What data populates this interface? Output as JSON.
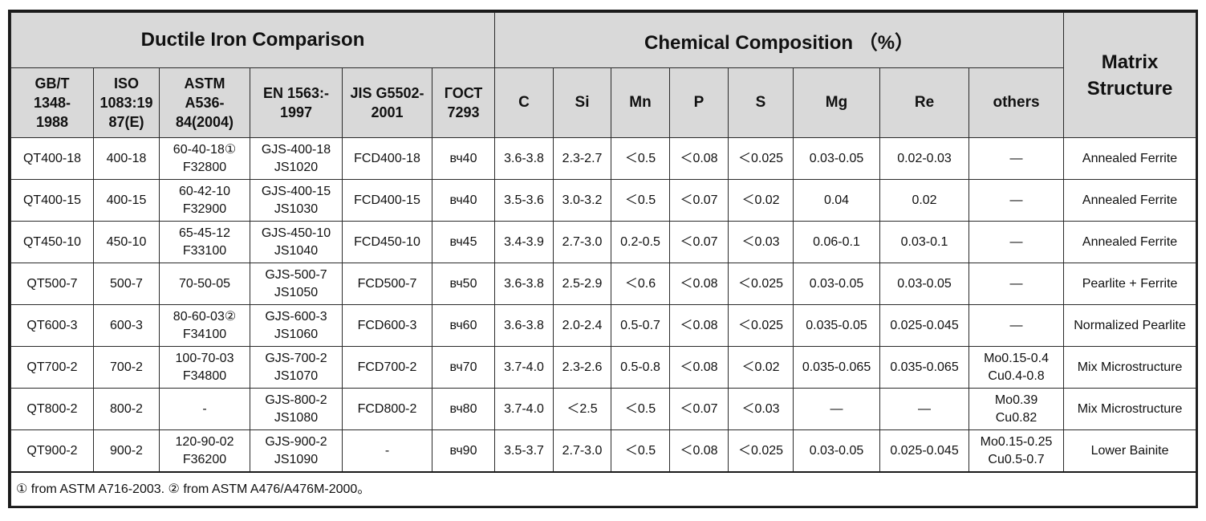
{
  "header": {
    "comparison_title": "Ductile Iron Comparison",
    "chemical_title": "Chemical Composition （%）",
    "matrix_title": "Matrix\nStructure"
  },
  "columns": {
    "gbt": "GB/T\n1348-\n1988",
    "iso": "ISO\n1083:19\n87(E)",
    "astm": "ASTM\nA536-\n84(2004)",
    "en": "EN 1563:-\n1997",
    "jis": "JIS G5502-\n2001",
    "gost": "ГОСТ\n7293",
    "c": "C",
    "si": "Si",
    "mn": "Mn",
    "p": "P",
    "s": "S",
    "mg": "Mg",
    "re": "Re",
    "others": "others"
  },
  "rows": [
    {
      "gbt": "QT400-18",
      "iso": "400-18",
      "astm": "60-40-18①\nF32800",
      "en": "GJS-400-18\nJS1020",
      "jis": "FCD400-18",
      "gost": "вч40",
      "c": "3.6-3.8",
      "si": "2.3-2.7",
      "mn": "＜0.5",
      "p": "＜0.08",
      "s": "＜0.025",
      "mg": "0.03-0.05",
      "re": "0.02-0.03",
      "others": "—",
      "matrix": "Annealed Ferrite"
    },
    {
      "gbt": "QT400-15",
      "iso": "400-15",
      "astm": "60-42-10\nF32900",
      "en": "GJS-400-15\nJS1030",
      "jis": "FCD400-15",
      "gost": "вч40",
      "c": "3.5-3.6",
      "si": "3.0-3.2",
      "mn": "＜0.5",
      "p": "＜0.07",
      "s": "＜0.02",
      "mg": "0.04",
      "re": "0.02",
      "others": "—",
      "matrix": "Annealed Ferrite"
    },
    {
      "gbt": "QT450-10",
      "iso": "450-10",
      "astm": "65-45-12\nF33100",
      "en": "GJS-450-10\nJS1040",
      "jis": "FCD450-10",
      "gost": "вч45",
      "c": "3.4-3.9",
      "si": "2.7-3.0",
      "mn": "0.2-0.5",
      "p": "＜0.07",
      "s": "＜0.03",
      "mg": "0.06-0.1",
      "re": "0.03-0.1",
      "others": "—",
      "matrix": "Annealed Ferrite"
    },
    {
      "gbt": "QT500-7",
      "iso": "500-7",
      "astm": "70-50-05",
      "en": "GJS-500-7\nJS1050",
      "jis": "FCD500-7",
      "gost": "вч50",
      "c": "3.6-3.8",
      "si": "2.5-2.9",
      "mn": "＜0.6",
      "p": "＜0.08",
      "s": "＜0.025",
      "mg": "0.03-0.05",
      "re": "0.03-0.05",
      "others": "—",
      "matrix": "Pearlite + Ferrite"
    },
    {
      "gbt": "QT600-3",
      "iso": "600-3",
      "astm": "80-60-03②\nF34100",
      "en": "GJS-600-3\nJS1060",
      "jis": "FCD600-3",
      "gost": "вч60",
      "c": "3.6-3.8",
      "si": "2.0-2.4",
      "mn": "0.5-0.7",
      "p": "＜0.08",
      "s": "＜0.025",
      "mg": "0.035-0.05",
      "re": "0.025-0.045",
      "others": "—",
      "matrix": "Normalized Pearlite"
    },
    {
      "gbt": "QT700-2",
      "iso": "700-2",
      "astm": "100-70-03\nF34800",
      "en": "GJS-700-2\nJS1070",
      "jis": "FCD700-2",
      "gost": "вч70",
      "c": "3.7-4.0",
      "si": "2.3-2.6",
      "mn": "0.5-0.8",
      "p": "＜0.08",
      "s": "＜0.02",
      "mg": "0.035-0.065",
      "re": "0.035-0.065",
      "others": "Mo0.15-0.4\nCu0.4-0.8",
      "matrix": "Mix Microstructure"
    },
    {
      "gbt": "QT800-2",
      "iso": "800-2",
      "astm": "-",
      "en": "GJS-800-2\nJS1080",
      "jis": "FCD800-2",
      "gost": "вч80",
      "c": "3.7-4.0",
      "si": "＜2.5",
      "mn": "＜0.5",
      "p": "＜0.07",
      "s": "＜0.03",
      "mg": "—",
      "re": "—",
      "others": "Mo0.39\nCu0.82",
      "matrix": "Mix Microstructure"
    },
    {
      "gbt": "QT900-2",
      "iso": "900-2",
      "astm": "120-90-02\nF36200",
      "en": "GJS-900-2\nJS1090",
      "jis": "-",
      "gost": "вч90",
      "c": "3.5-3.7",
      "si": "2.7-3.0",
      "mn": "＜0.5",
      "p": "＜0.08",
      "s": "＜0.025",
      "mg": "0.03-0.05",
      "re": "0.025-0.045",
      "others": "Mo0.15-0.25\nCu0.5-0.7",
      "matrix": "Lower Bainite"
    }
  ],
  "footnote": "① from ASTM A716-2003.  ② from ASTM A476/A476M-2000。"
}
